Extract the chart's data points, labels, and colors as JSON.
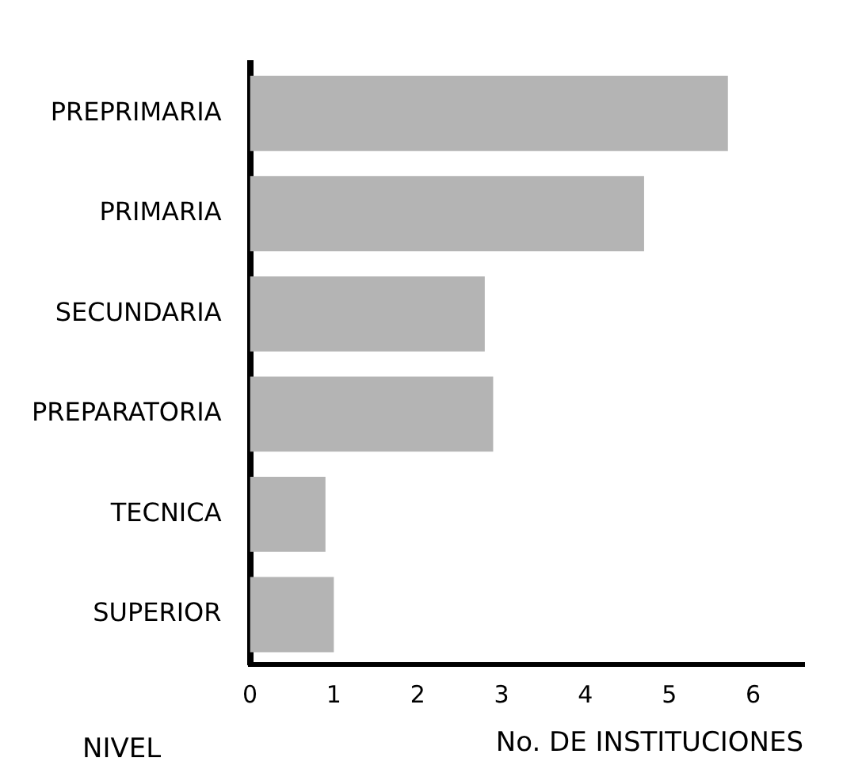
{
  "chart_data": {
    "type": "bar",
    "orientation": "horizontal",
    "xlabel": "No. DE INSTITUCIONES",
    "ylabel": "NIVEL",
    "categories": [
      "PREPRIMARIA",
      "PRIMARIA",
      "SECUNDARIA",
      "PREPARATORIA",
      "TECNICA",
      "SUPERIOR"
    ],
    "values": [
      5.7,
      4.7,
      2.8,
      2.9,
      0.9,
      1.0
    ],
    "color": "#b4b4b4",
    "xlim": [
      0,
      6.6
    ],
    "xticks": [
      0,
      1,
      2,
      3,
      4,
      5,
      6
    ],
    "grid": false,
    "legend": false
  }
}
